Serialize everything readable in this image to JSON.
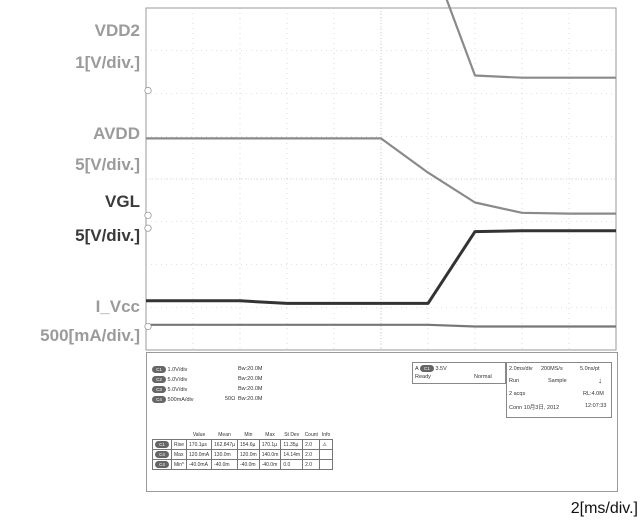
{
  "chart_data": {
    "type": "line",
    "title": "",
    "x_scale": "2[ms/div.]",
    "x": [
      0,
      2,
      4,
      6,
      8,
      10,
      12,
      14,
      16,
      18,
      20
    ],
    "series": [
      {
        "name": "VDD2",
        "scale": "1[V/div.]",
        "color": "#8a8a8a",
        "values": [
          3.3,
          3.3,
          3.3,
          3.3,
          3.3,
          3.3,
          3.3,
          0.35,
          0.3,
          0.3,
          0.3
        ]
      },
      {
        "name": "AVDD",
        "scale": "5[V/div.]",
        "color": "#8a8a8a",
        "values": [
          9.0,
          9.0,
          9.0,
          9.0,
          9.0,
          9.0,
          5.0,
          1.5,
          0.3,
          0.2,
          0.2
        ]
      },
      {
        "name": "VGL",
        "scale": "5[V/div.]",
        "color": "#333333",
        "values": [
          -8.5,
          -8.5,
          -8.5,
          -8.8,
          -8.8,
          -8.8,
          -8.8,
          -0.4,
          -0.3,
          -0.3,
          -0.3
        ]
      },
      {
        "name": "I_Vcc",
        "scale": "500[mA/div.]",
        "color": "#777777",
        "values": [
          20,
          20,
          20,
          20,
          20,
          20,
          20,
          0,
          0,
          0,
          0
        ]
      }
    ],
    "grid": true,
    "legend": "left"
  },
  "labels": {
    "vdd2_name": "VDD2",
    "vdd2_scale": "1[V/div.]",
    "avdd_name": "AVDD",
    "avdd_scale": "5[V/div.]",
    "vgl_name": "VGL",
    "vgl_scale": "5[V/div.]",
    "ivcc_name": "I_Vcc",
    "ivcc_scale": "500[mA/div.]",
    "timebase": "2[ms/div.]"
  },
  "scope": {
    "channels": [
      {
        "chip": "C1",
        "scale": "1.0V/div",
        "bw": "Bw:20.0M",
        "imp": ""
      },
      {
        "chip": "C2",
        "scale": "5.0V/div",
        "bw": "Bw:20.0M",
        "imp": ""
      },
      {
        "chip": "C3",
        "scale": "5.0V/div",
        "bw": "Bw:20.0M",
        "imp": ""
      },
      {
        "chip": "C4",
        "scale": "500mA/div",
        "bw": "Bw:20.0M",
        "imp": "50Ω"
      }
    ],
    "trigger": {
      "chip": "A",
      "source": "C1",
      "level": "3.5V",
      "state": "Ready",
      "mode": "Normal"
    },
    "acq": {
      "timebase": "2.0ms/div",
      "rate": "200MS/s",
      "pt": "5.0ns/pt",
      "run": "Run",
      "sample": "Sample",
      "acqs": "2 acqs",
      "rl": "RL:4.0M",
      "date": "Conn 10月3日, 2012",
      "time": "12:07:33"
    },
    "meas_headers": [
      "",
      "",
      "Value",
      "Mean",
      "Min",
      "Max",
      "St Dev",
      "Count",
      "Info"
    ],
    "meas_rows": [
      {
        "chip": "C1",
        "name": "Rise",
        "cells": [
          "170.1µs",
          "162.847µ",
          "154.6µ",
          "170.1µ",
          "11.35µ",
          "2.0",
          "⚠"
        ]
      },
      {
        "chip": "C4",
        "name": "Max",
        "cells": [
          "120.0mA",
          "130.0m",
          "120.0m",
          "140.0m",
          "14.14m",
          "2.0",
          ""
        ]
      },
      {
        "chip": "C4",
        "name": "Min*",
        "cells": [
          "-40.0mA",
          "-40.0m",
          "-40.0m",
          "-40.0m",
          "0.0",
          "2.0",
          ""
        ]
      }
    ]
  }
}
